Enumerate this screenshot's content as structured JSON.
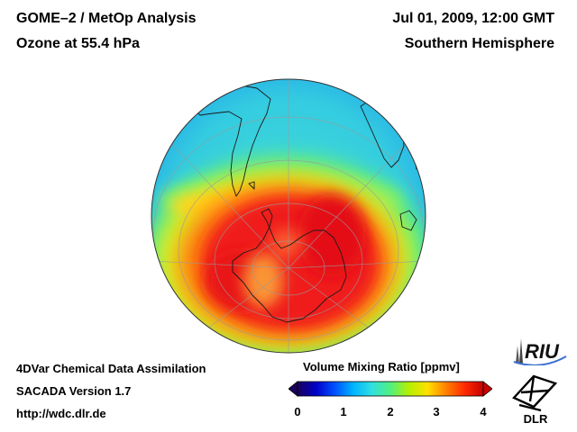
{
  "header": {
    "title_line1": "GOME–2 / MetOp Analysis",
    "title_line2": "Ozone at 55.4 hPa",
    "date_line": "Jul 01, 2009, 12:00 GMT",
    "region_line": "Southern Hemisphere"
  },
  "footer": {
    "line1": "4DVar Chemical Data Assimilation",
    "line2": "SACADA Version 1.7",
    "line3": "http://wdc.dlr.de"
  },
  "colorbar": {
    "title": "Volume Mixing Ratio [ppmv]",
    "ticks": [
      "0",
      "1",
      "2",
      "3",
      "4"
    ],
    "colors": [
      "#1a005a",
      "#0000c8",
      "#0050ff",
      "#00b4ff",
      "#30e0e0",
      "#50f080",
      "#b4f000",
      "#ffe000",
      "#ff8000",
      "#ff2a00",
      "#c80000"
    ]
  },
  "logos": {
    "riu": "RIU",
    "dlr": "DLR"
  },
  "map": {
    "colors": {
      "ocean_background": "#32d2e2",
      "high": "#f01a1a",
      "mid": "#ffe000"
    }
  }
}
